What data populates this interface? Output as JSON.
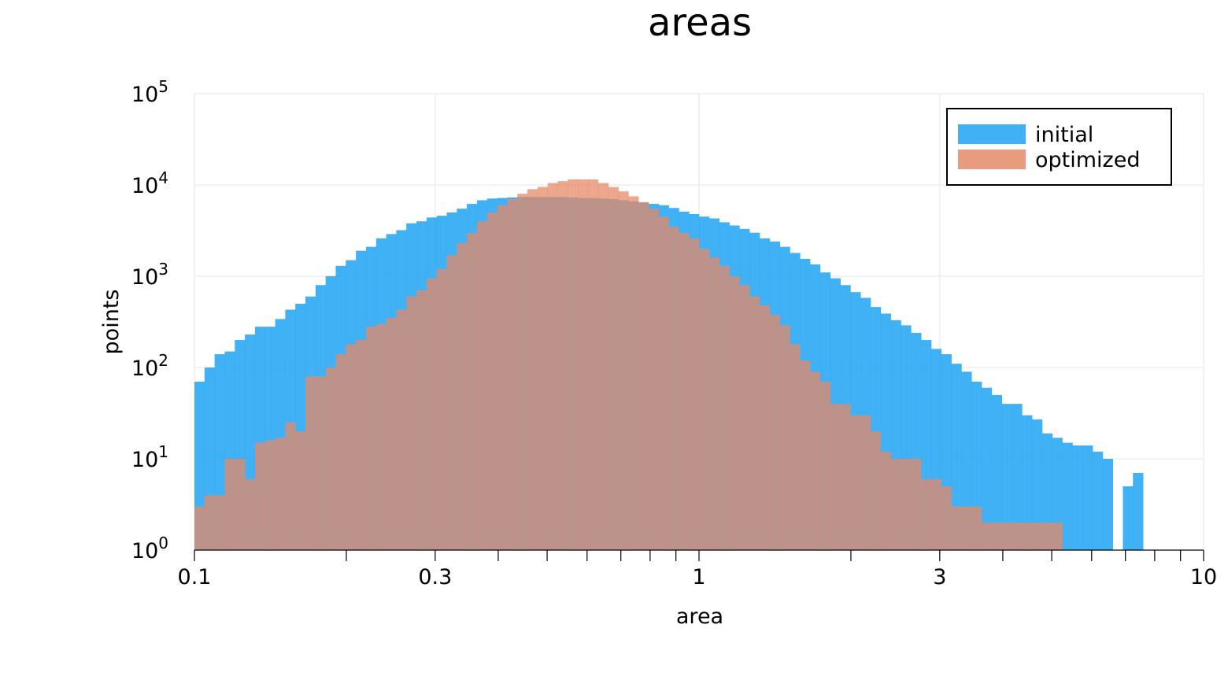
{
  "chart_data": {
    "type": "bar",
    "title": "areas",
    "xlabel": "area",
    "ylabel": "points",
    "x_scale": "log",
    "y_scale": "log",
    "xlim": [
      0.1,
      10
    ],
    "ylim": [
      1,
      100000
    ],
    "grid": true,
    "legend_position": "top-right",
    "x_ticks": [
      {
        "value": 0.1,
        "label": "0.1"
      },
      {
        "value": 0.3,
        "label": "0.3"
      },
      {
        "value": 1,
        "label": "1"
      },
      {
        "value": 3,
        "label": "3"
      },
      {
        "value": 10,
        "label": "10"
      }
    ],
    "y_ticks": [
      {
        "value": 1,
        "base": "10",
        "exp": "0"
      },
      {
        "value": 10,
        "base": "10",
        "exp": "1"
      },
      {
        "value": 100,
        "base": "10",
        "exp": "2"
      },
      {
        "value": 1000,
        "base": "10",
        "exp": "3"
      },
      {
        "value": 10000,
        "base": "10",
        "exp": "4"
      },
      {
        "value": 100000,
        "base": "10",
        "exp": "5"
      }
    ],
    "bin_edges_log10": {
      "start": -1,
      "width": 0.02,
      "count": 100
    },
    "series": [
      {
        "name": "initial",
        "color": "#2ca8f5",
        "values": [
          70,
          100,
          140,
          150,
          200,
          230,
          280,
          280,
          340,
          430,
          500,
          600,
          800,
          1000,
          1300,
          1500,
          1900,
          2100,
          2600,
          2900,
          3200,
          3800,
          4000,
          4400,
          4600,
          5000,
          5500,
          6200,
          6800,
          7100,
          7200,
          7300,
          7400,
          7400,
          7400,
          7400,
          7400,
          7300,
          7200,
          7200,
          7100,
          7000,
          6800,
          6600,
          6400,
          6200,
          6000,
          5600,
          5100,
          4800,
          4500,
          4300,
          3900,
          3600,
          3300,
          3000,
          2600,
          2400,
          2100,
          1800,
          1550,
          1350,
          1100,
          950,
          800,
          670,
          580,
          460,
          390,
          330,
          290,
          240,
          200,
          160,
          140,
          110,
          90,
          70,
          60,
          50,
          40,
          40,
          30,
          27,
          19,
          17,
          15,
          14,
          14,
          12,
          10,
          0,
          5,
          7,
          1,
          1,
          0,
          0,
          0,
          0
        ]
      },
      {
        "name": "optimized",
        "color": "#e58a67",
        "values": [
          3,
          4,
          4,
          10,
          10,
          6,
          15,
          16,
          17,
          25,
          20,
          80,
          80,
          100,
          140,
          180,
          200,
          280,
          300,
          350,
          430,
          600,
          700,
          950,
          1200,
          1700,
          2300,
          3000,
          4000,
          5000,
          6000,
          7000,
          8000,
          9000,
          9500,
          10500,
          11000,
          11500,
          11500,
          11500,
          10500,
          9500,
          8500,
          7500,
          6500,
          5500,
          4500,
          3500,
          3000,
          2600,
          2000,
          1600,
          1300,
          1000,
          800,
          600,
          480,
          380,
          290,
          180,
          120,
          90,
          70,
          40,
          40,
          30,
          30,
          20,
          12,
          10,
          10,
          10,
          6,
          6,
          5,
          3,
          3,
          3,
          2,
          2,
          2,
          2,
          2,
          2,
          2,
          2,
          0,
          0,
          0,
          0,
          0,
          0,
          0,
          0,
          0,
          0,
          0,
          0,
          0,
          0
        ]
      }
    ]
  }
}
